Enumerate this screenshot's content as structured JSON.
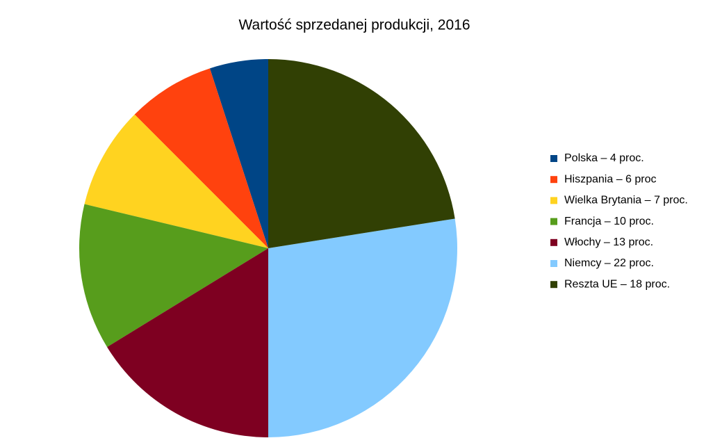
{
  "chart_data": {
    "type": "pie",
    "title": "Wartość sprzedanej produkcji, 2016",
    "categories": [
      "Polska – 4 proc.",
      "Hiszpania – 6 proc",
      "Wielka Brytania – 7 proc.",
      "Francja – 10 proc.",
      "Włochy – 13 proc.",
      "Niemcy – 22 proc.",
      "Reszta UE – 18 proc."
    ],
    "values": [
      4,
      6,
      7,
      10,
      13,
      22,
      18
    ],
    "colors": [
      "#004586",
      "#ff420e",
      "#ffd320",
      "#579d1c",
      "#7e0021",
      "#83caff",
      "#314004"
    ],
    "legend": "right"
  }
}
